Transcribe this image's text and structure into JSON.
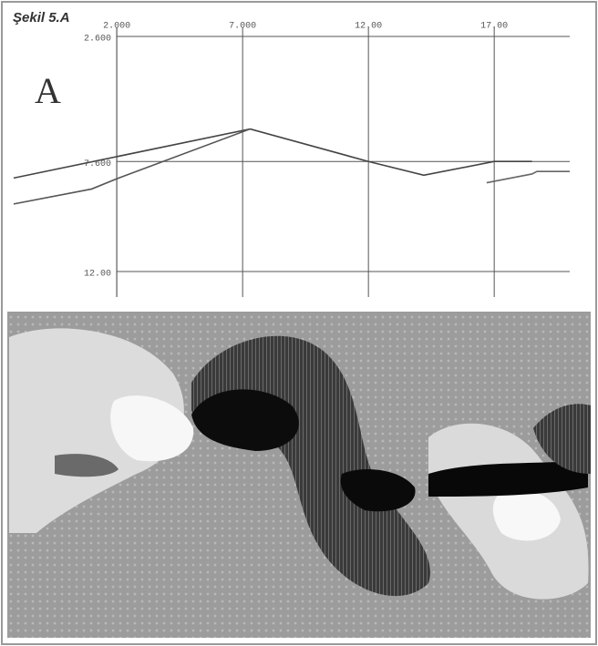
{
  "chart_data": {
    "type": "line",
    "title": "Şekil 5.A",
    "panel_label": "A",
    "xlim": [
      -2.1,
      20.4
    ],
    "xticks": [
      {
        "value": 2,
        "label": "2.000"
      },
      {
        "value": 7,
        "label": "7.000"
      },
      {
        "value": 12,
        "label": "12.00"
      },
      {
        "value": 17,
        "label": "17.00"
      }
    ],
    "ylim": [
      12,
      2.6
    ],
    "yticks": [
      {
        "value": 2.6,
        "label": "2.600"
      },
      {
        "value": 7.6,
        "label": "7.600"
      },
      {
        "value": 12,
        "label": "12.00"
      }
    ],
    "grid": true,
    "series": [
      {
        "color": "#444444",
        "x": [
          -2.1,
          7.3,
          12.0,
          14.2,
          17.0,
          18.5
        ],
        "values": [
          8.26,
          6.3,
          7.6,
          8.15,
          7.6,
          7.6
        ]
      },
      {
        "color": "#555555",
        "x": [
          -2.1,
          1.0,
          2.1,
          7.3
        ],
        "values": [
          9.3,
          8.7,
          8.25,
          6.3
        ]
      },
      {
        "color": "#666666",
        "x": [
          16.7,
          18.5,
          18.7,
          20.0
        ],
        "values": [
          8.45,
          8.1,
          8.0,
          8.0
        ]
      }
    ]
  }
}
